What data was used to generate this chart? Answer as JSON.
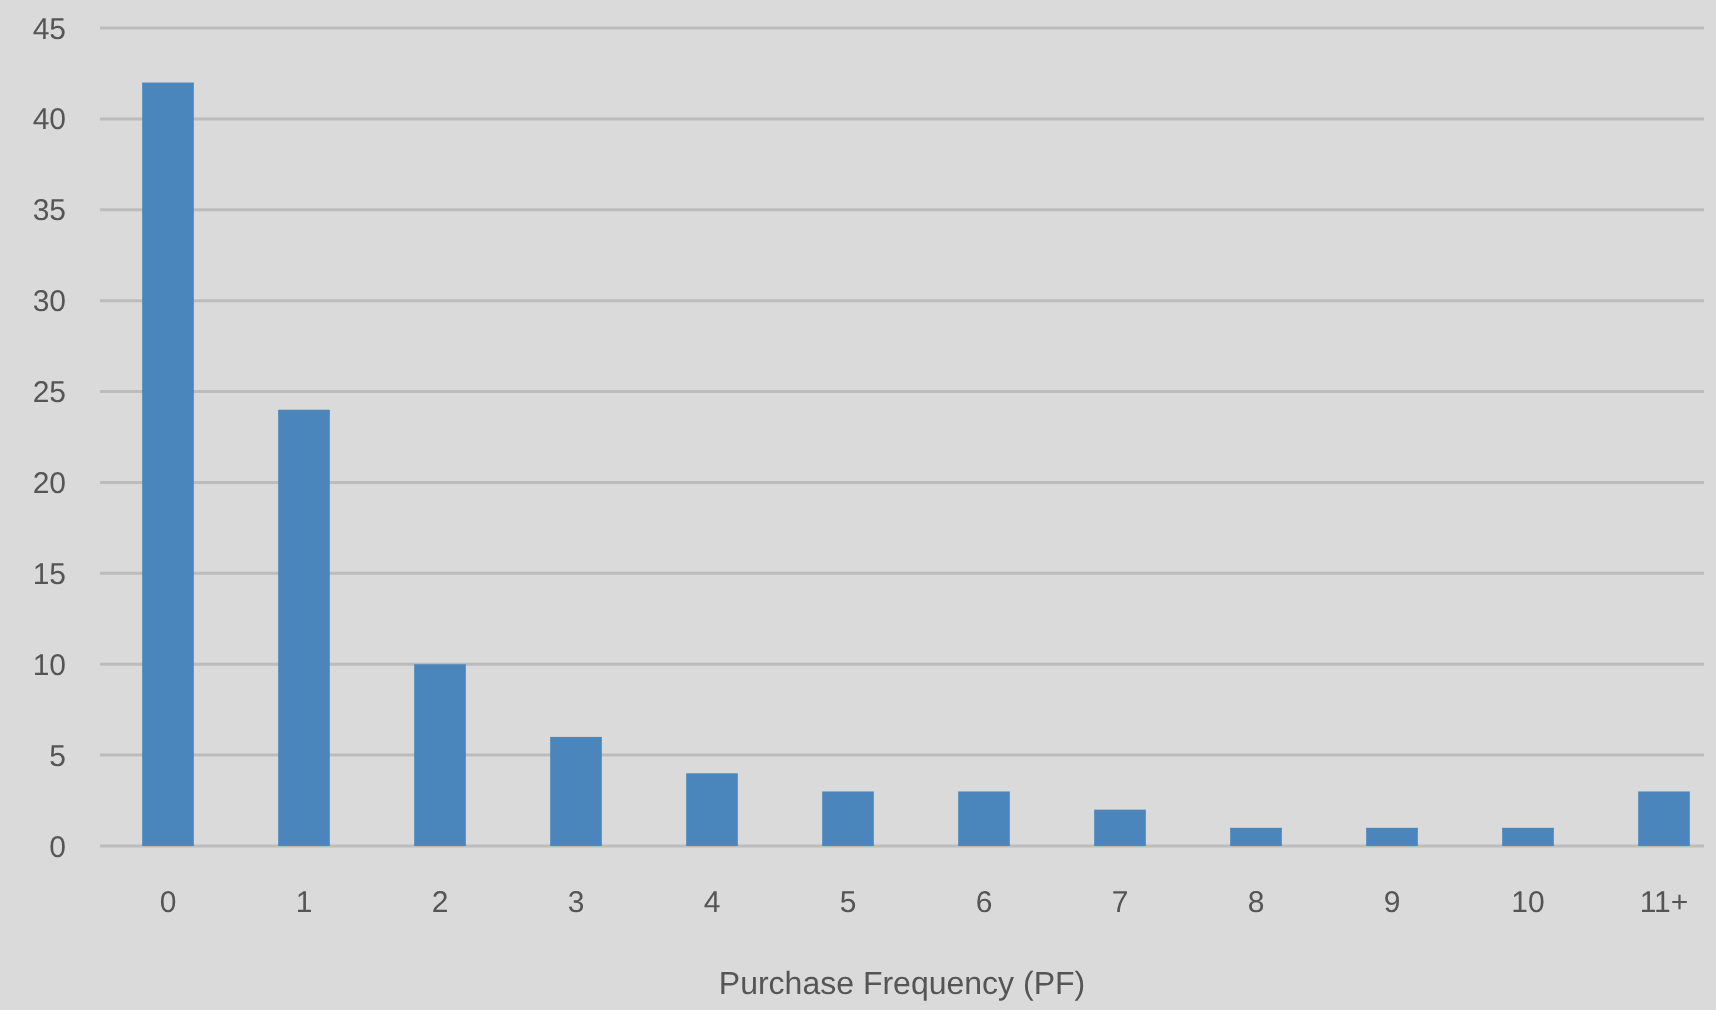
{
  "chart_data": {
    "type": "bar",
    "xlabel": "Purchase Frequency (PF)",
    "categories": [
      "0",
      "1",
      "2",
      "3",
      "4",
      "5",
      "6",
      "7",
      "8",
      "9",
      "10",
      "11+"
    ],
    "values": [
      42,
      24,
      10,
      6,
      4,
      3,
      3,
      2,
      1,
      1,
      1,
      3
    ],
    "color": "#4a86bb",
    "ylim": [
      0,
      45
    ],
    "yticks": [
      0,
      5,
      10,
      15,
      20,
      25,
      30,
      35,
      40,
      45
    ],
    "grid": "y"
  }
}
